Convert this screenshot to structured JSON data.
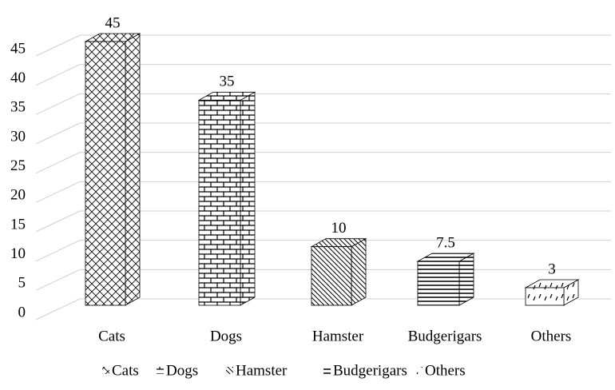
{
  "chart_data": {
    "type": "bar",
    "categories": [
      "Cats",
      "Dogs",
      "Hamster",
      "Budgerigars",
      "Others"
    ],
    "values": [
      45,
      35,
      10,
      7.5,
      3
    ],
    "color": "#000000",
    "ylim": [
      0,
      45
    ],
    "yticks": [
      0,
      5,
      10,
      15,
      20,
      25,
      30,
      35,
      40,
      45
    ],
    "grid": true,
    "legend": "bottom"
  }
}
